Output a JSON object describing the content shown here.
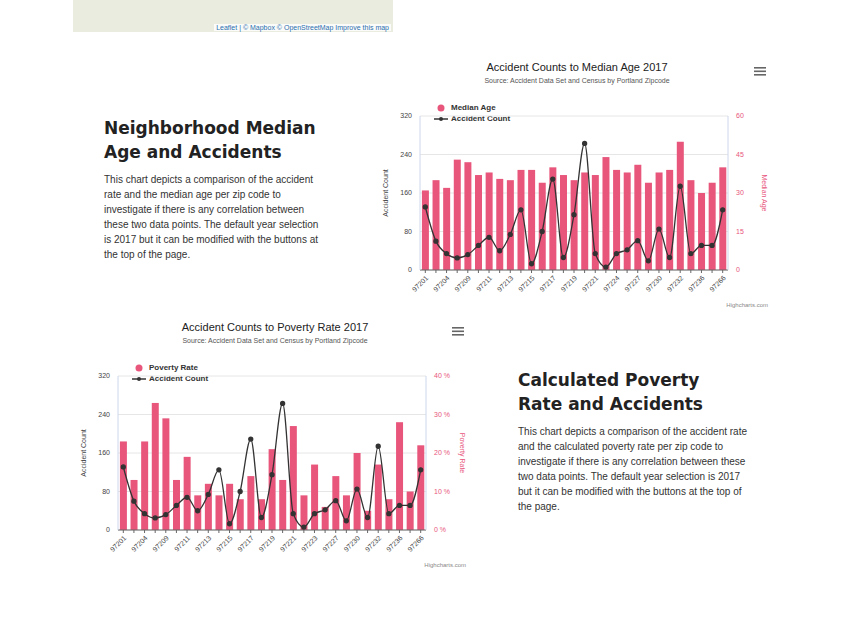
{
  "page": {
    "map": {
      "attribution": "Leaflet | © Mapbox © OpenStreetMap Improve this map"
    },
    "sections": [
      {
        "heading": "Neighborhood Median Age and Accidents",
        "text": "This chart depicts a comparison of the accident rate and the median age per zip code to investigate if there is any correlation between these two data points. The default year selection is 2017 but it can be modified with the buttons at the top of the page."
      },
      {
        "heading": "Calculated Poverty Rate and Accidents",
        "text": "This chart depicts a comparison of the accident rate and the calculated poverty rate per zip code to investigate if there is any correlation between these two data points. The default year selection is 2017 but it can be modified with the buttons at the top of the page."
      }
    ]
  },
  "chart_data": [
    {
      "type": "bar",
      "title": "Accident Counts to Median Age 2017",
      "subtitle": "Source: Accident Data Set and Census by Portland Zipcode",
      "credits": "Highcharts.com",
      "y_label": "Accident Count",
      "y2_label": "Median Age",
      "legend": "top-left",
      "grid": true,
      "categories": [
        "97201",
        null,
        "97204",
        null,
        "97209",
        null,
        "97211",
        null,
        "97213",
        null,
        "97215",
        null,
        "97217",
        null,
        "97219",
        null,
        "97221",
        null,
        "97224",
        null,
        "97227",
        null,
        "97230",
        null,
        "97232",
        null,
        "97236",
        null,
        "97266"
      ],
      "ylim": [
        0,
        320
      ],
      "yticks": [
        0,
        80,
        160,
        240,
        320
      ],
      "y2lim": [
        0,
        60
      ],
      "y2ticks": [
        0,
        15,
        30,
        45,
        60
      ],
      "series": [
        {
          "name": "Median Age",
          "type": "bar",
          "axis": "y2",
          "color": "#e8567c",
          "marker": "circle",
          "values": [
            31,
            35,
            32,
            43,
            42,
            37,
            38,
            35.5,
            35,
            39,
            39,
            34,
            40,
            37,
            35,
            38,
            37,
            44,
            39,
            38,
            41,
            34,
            38,
            39,
            50,
            35,
            30,
            34,
            40
          ]
        },
        {
          "name": "Accident Count",
          "type": "line",
          "color": "#333333",
          "marker": "circle",
          "line_style": "smooth",
          "values": [
            131,
            60,
            34,
            25,
            32,
            51,
            68,
            40,
            74,
            125,
            13,
            80,
            189,
            26,
            115,
            263,
            34,
            6,
            34,
            42,
            61,
            19,
            85,
            26,
            174,
            34,
            51,
            51,
            125
          ]
        }
      ]
    },
    {
      "type": "bar",
      "title": "Accident Counts to Poverty Rate 2017",
      "subtitle": "Source: Accident Data Set and Census by Portland Zipcode",
      "credits": "Highcharts.com",
      "y_label": "Accident Count",
      "y2_label": "Poverty Rate",
      "legend": "top-left",
      "grid": true,
      "categories": [
        "97201",
        null,
        "97204",
        null,
        "97209",
        null,
        "97211",
        null,
        "97213",
        null,
        "97215",
        null,
        "97217",
        null,
        "97219",
        null,
        "97221",
        null,
        "97223",
        null,
        "97227",
        null,
        "97230",
        null,
        "97232",
        null,
        "97236",
        null,
        "97266"
      ],
      "ylim": [
        0,
        320
      ],
      "yticks": [
        0,
        80,
        160,
        240,
        320
      ],
      "y2lim": [
        0,
        40
      ],
      "y2ticks": [
        {
          "value": 0,
          "label": "0 %"
        },
        {
          "value": 10,
          "label": "10 %"
        },
        {
          "value": 20,
          "label": "20 %"
        },
        {
          "value": 30,
          "label": "30 %"
        },
        {
          "value": 40,
          "label": "40 %"
        }
      ],
      "series": [
        {
          "name": "Poverty Rate",
          "type": "bar",
          "axis": "y2",
          "color": "#e8567c",
          "marker": "circle",
          "values": [
            23,
            13,
            23,
            33,
            29,
            13,
            19,
            9,
            12,
            9,
            12,
            8,
            14,
            8,
            21,
            13,
            27,
            9,
            17,
            6,
            14,
            9,
            20,
            5,
            17,
            8,
            28,
            10,
            22
          ]
        },
        {
          "name": "Accident Count",
          "type": "line",
          "color": "#333333",
          "marker": "circle",
          "line_style": "smooth",
          "values": [
            131,
            60,
            34,
            25,
            32,
            51,
            68,
            40,
            74,
            125,
            13,
            80,
            189,
            26,
            115,
            263,
            34,
            6,
            34,
            42,
            61,
            19,
            85,
            26,
            174,
            34,
            51,
            51,
            125
          ]
        }
      ]
    }
  ]
}
